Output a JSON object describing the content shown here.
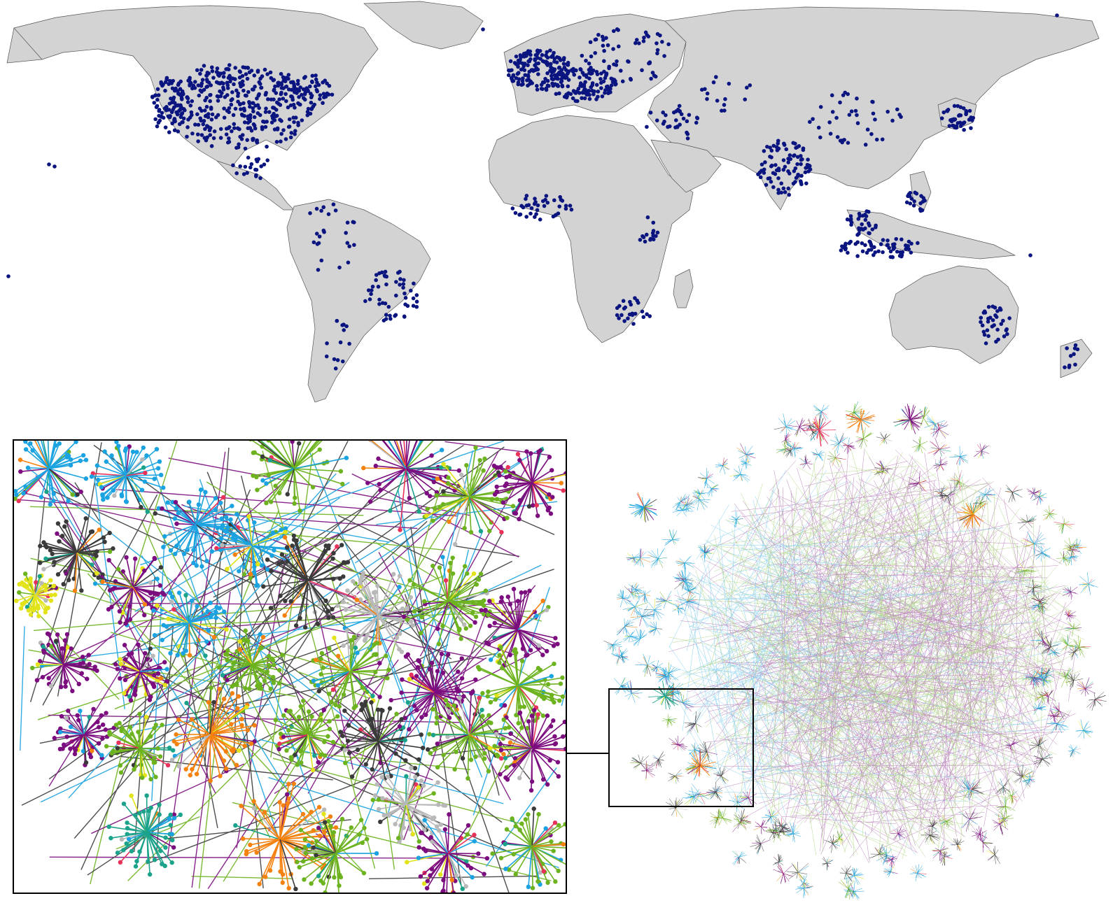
{
  "colors": {
    "land": "#d3d3d3",
    "border": "#555555",
    "ocean": "#ffffff",
    "marker": "#0b1580",
    "frame": "#000000"
  },
  "map": {
    "marker_shape": "dot",
    "projection": "equirectangular-world"
  },
  "network": {
    "layout": "force-directed-circle",
    "palette": [
      {
        "name": "purple",
        "color": "#7b0d7e"
      },
      {
        "name": "green",
        "color": "#6db31f"
      },
      {
        "name": "sky-blue",
        "color": "#1aa3e0"
      },
      {
        "name": "dark-gray",
        "color": "#3a3a3a"
      },
      {
        "name": "orange",
        "color": "#f5810f"
      },
      {
        "name": "teal",
        "color": "#1aa38a"
      },
      {
        "name": "light-gray",
        "color": "#b8b8b8"
      },
      {
        "name": "yellow",
        "color": "#e3e31a"
      },
      {
        "name": "pink",
        "color": "#e8325a"
      }
    ]
  }
}
